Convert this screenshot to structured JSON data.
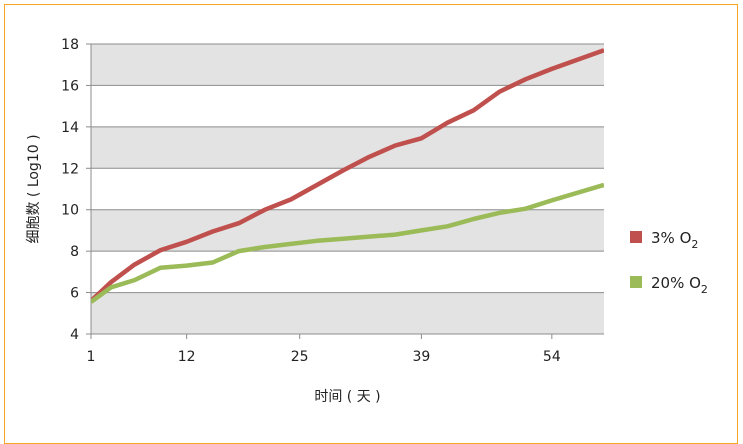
{
  "chart_data": {
    "type": "line",
    "xlabel": "时间 ( 天 )",
    "ylabel": "细胞数 ( Log10 )",
    "x_ticks": [
      1,
      12,
      25,
      39,
      54
    ],
    "xlim": [
      1,
      60
    ],
    "ylim": [
      4,
      18
    ],
    "y_ticks": [
      4,
      6,
      8,
      10,
      12,
      14,
      16,
      18
    ],
    "grid": true,
    "legend_position": "right",
    "series": [
      {
        "name": "3% O2",
        "name_base": "3% O",
        "name_sub": "2",
        "color": "#c0504d",
        "points": [
          [
            1,
            5.6
          ],
          [
            3.3,
            6.5
          ],
          [
            6,
            7.35
          ],
          [
            9,
            8.05
          ],
          [
            12,
            8.45
          ],
          [
            15,
            8.95
          ],
          [
            18,
            9.35
          ],
          [
            21,
            10.0
          ],
          [
            24,
            10.5
          ],
          [
            27,
            11.2
          ],
          [
            30,
            11.9
          ],
          [
            33,
            12.55
          ],
          [
            36,
            13.1
          ],
          [
            39,
            13.45
          ],
          [
            42,
            14.2
          ],
          [
            45,
            14.8
          ],
          [
            48,
            15.7
          ],
          [
            51,
            16.3
          ],
          [
            54,
            16.8
          ],
          [
            60,
            17.7
          ]
        ]
      },
      {
        "name": "20% O2",
        "name_base": "20% O",
        "name_sub": "2",
        "color": "#9bbb59",
        "points": [
          [
            1,
            5.55
          ],
          [
            3.3,
            6.25
          ],
          [
            6,
            6.6
          ],
          [
            9,
            7.2
          ],
          [
            12,
            7.3
          ],
          [
            15,
            7.45
          ],
          [
            18,
            8.0
          ],
          [
            21,
            8.2
          ],
          [
            24,
            8.35
          ],
          [
            27,
            8.5
          ],
          [
            30,
            8.6
          ],
          [
            33,
            8.7
          ],
          [
            36,
            8.8
          ],
          [
            39,
            9.0
          ],
          [
            42,
            9.2
          ],
          [
            45,
            9.55
          ],
          [
            48,
            9.85
          ],
          [
            51,
            10.05
          ],
          [
            54,
            10.45
          ],
          [
            60,
            11.2
          ]
        ]
      }
    ]
  }
}
